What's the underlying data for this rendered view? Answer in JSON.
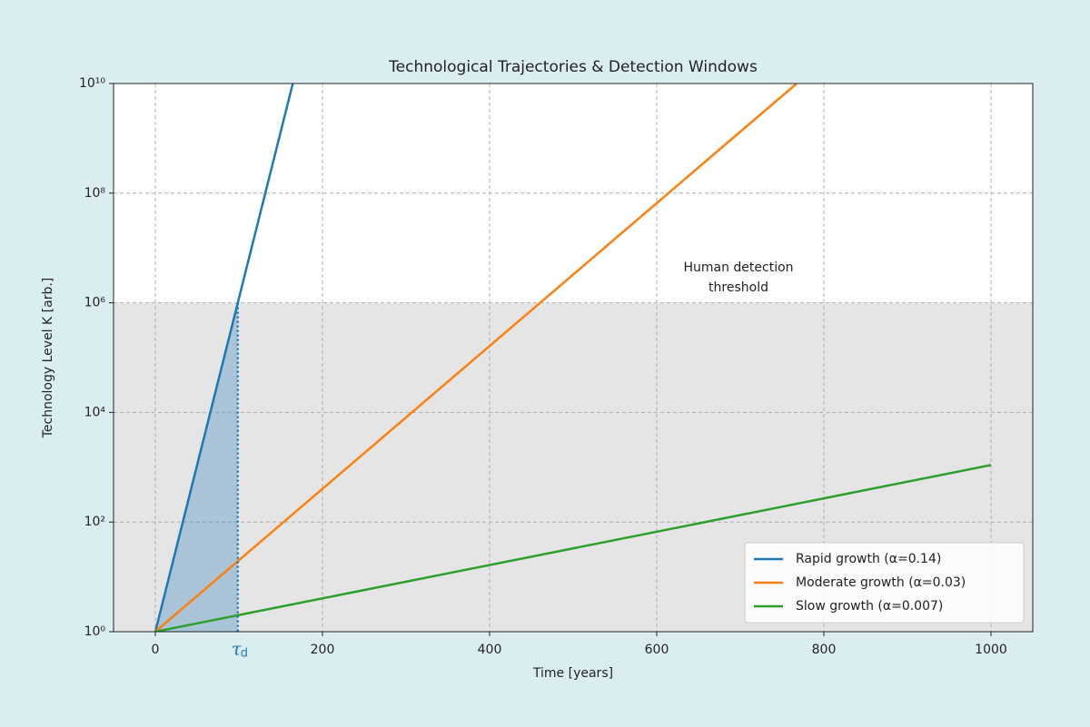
{
  "chart_data": {
    "type": "line",
    "title": "Technological Trajectories & Detection Windows",
    "xlabel": "Time [years]",
    "ylabel": "Technology Level K [arb.]",
    "xlim": [
      -50,
      1050
    ],
    "xticks": [
      0,
      200,
      400,
      600,
      800,
      1000
    ],
    "ylim": [
      1,
      10000000000
    ],
    "log_y": true,
    "yticks": [
      {
        "value": 1,
        "label": "10⁰"
      },
      {
        "value": 100,
        "label": "10²"
      },
      {
        "value": 10000,
        "label": "10⁴"
      },
      {
        "value": 1000000,
        "label": "10⁶"
      },
      {
        "value": 100000000,
        "label": "10⁸"
      },
      {
        "value": 10000000000,
        "label": "10¹⁰"
      }
    ],
    "grid": true,
    "threshold": 1000000,
    "threshold_color": "#e5e5e5",
    "annotation_lines": [
      "Human detection",
      "threshold"
    ],
    "detection_time": 98.7,
    "detection_label": "τ",
    "detection_subscript": "d",
    "detection_color": "#1f77b4",
    "legend": "lower right",
    "series": [
      {
        "name": "Rapid growth (α=0.14)",
        "color": "#1f77b4",
        "x": [
          0,
          164.5
        ],
        "values": [
          1,
          10000000000
        ]
      },
      {
        "name": "Moderate growth (α=0.03)",
        "color": "#ff7f0e",
        "x": [
          0,
          767.5
        ],
        "values": [
          1,
          10000000000
        ]
      },
      {
        "name": "Slow growth (α=0.007)",
        "color": "#2ca02c",
        "x": [
          0,
          1000
        ],
        "values": [
          1,
          1097
        ]
      }
    ]
  }
}
